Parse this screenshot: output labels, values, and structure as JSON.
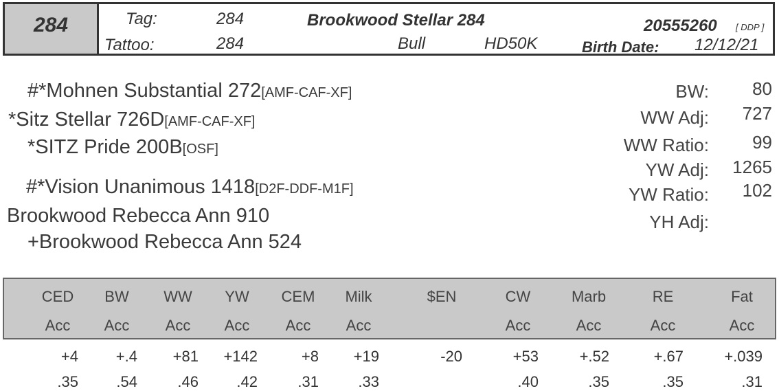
{
  "header": {
    "lot": "284",
    "tag_label": "Tag:",
    "tag_value": "284",
    "tattoo_label": "Tattoo:",
    "tattoo_value": "284",
    "name": "Brookwood Stellar 284",
    "registration": "20555260",
    "registration_suffix": "[ DDP ]",
    "sex": "Bull",
    "genomic": "HD50K",
    "birth_label": "Birth Date:",
    "birth_value": "12/12/21"
  },
  "pedigree": [
    {
      "name": "#*Mohnen Substantial 272",
      "codes": "[AMF-CAF-XF]"
    },
    {
      "name": "*Sitz Stellar 726D",
      "codes": "[AMF-CAF-XF]"
    },
    {
      "name": "*SITZ Pride 200B",
      "codes": "[OSF]"
    },
    {
      "name": "#*Vision Unanimous 1418",
      "codes": "[D2F-DDF-M1F]"
    },
    {
      "name": "Brookwood Rebecca Ann 910",
      "codes": ""
    },
    {
      "name": "+Brookwood Rebecca Ann 524",
      "codes": ""
    }
  ],
  "performance": [
    {
      "label": "BW:",
      "value": "80"
    },
    {
      "label": "WW Adj:",
      "value": "727"
    },
    {
      "label": "WW Ratio:",
      "value": "99"
    },
    {
      "label": "YW Adj:",
      "value": "1265"
    },
    {
      "label": "YW Ratio:",
      "value": "102"
    },
    {
      "label": "YH Adj:",
      "value": ""
    }
  ],
  "epd": {
    "headers": [
      "CED",
      "BW",
      "WW",
      "YW",
      "CEM",
      "Milk",
      "$EN",
      "CW",
      "Marb",
      "RE",
      "Fat"
    ],
    "acc_label": [
      "Acc",
      "Acc",
      "Acc",
      "Acc",
      "Acc",
      "Acc",
      "",
      "Acc",
      "Acc",
      "Acc",
      "Acc"
    ],
    "values": [
      "+4",
      "+.4",
      "+81",
      "+142",
      "+8",
      "+19",
      "-20",
      "+53",
      "+.52",
      "+.67",
      "+.039"
    ],
    "accuracy": [
      ".35",
      ".54",
      ".46",
      ".42",
      ".31",
      ".33",
      "",
      ".40",
      ".35",
      ".35",
      ".31"
    ]
  }
}
